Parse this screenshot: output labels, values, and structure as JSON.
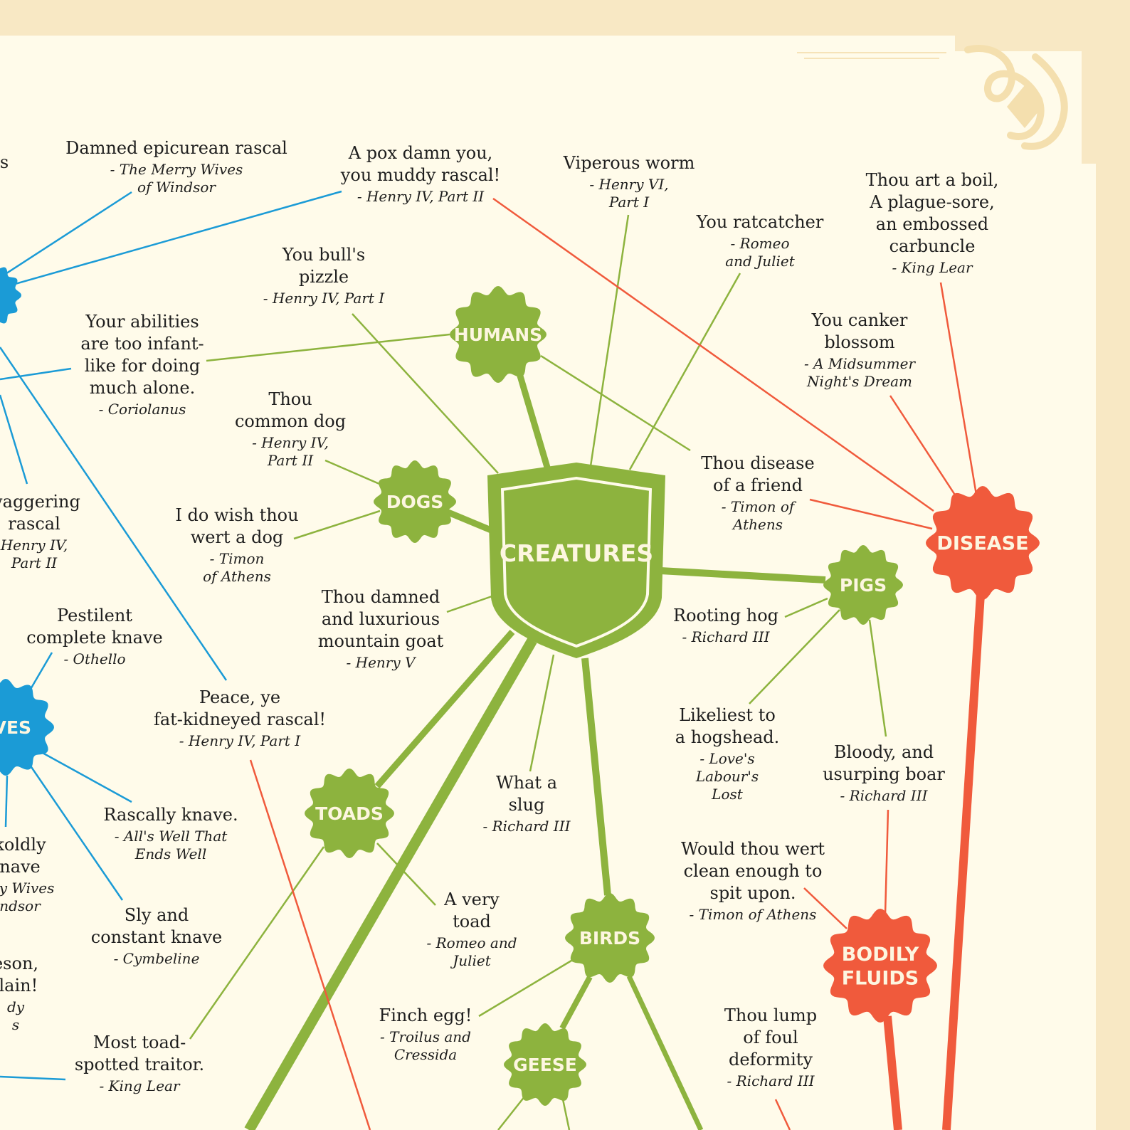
{
  "colors": {
    "background_outer": "#f8e8c4",
    "paper": "#fffbea",
    "green": "#8db33e",
    "red": "#f05a3c",
    "blue": "#1b9bd6",
    "text": "#1e1e1e",
    "badge_text": "#fdf6e0"
  },
  "center": {
    "label": "CREATURES"
  },
  "badges": [
    {
      "id": "humans",
      "label": "HUMANS"
    },
    {
      "id": "dogs",
      "label": "DOGS"
    },
    {
      "id": "pigs",
      "label": "PIGS"
    },
    {
      "id": "toads",
      "label": "TOADS"
    },
    {
      "id": "birds",
      "label": "BIRDS"
    },
    {
      "id": "geese",
      "label": "GEESE"
    },
    {
      "id": "disease",
      "label": "DISEASE"
    },
    {
      "id": "bodily_fluids",
      "label": "BODILY\nFLUIDS"
    },
    {
      "id": "blue_top",
      "label": ""
    },
    {
      "id": "knaves",
      "label": "AVES"
    }
  ],
  "quotes": [
    {
      "id": "epicurean",
      "lines": [
        "Damned epicurean rascal"
      ],
      "source": [
        "- The Merry Wives",
        "of Windsor"
      ]
    },
    {
      "id": "pox",
      "lines": [
        "A pox damn you,",
        "you muddy rascal!"
      ],
      "source": [
        "- Henry IV, Part II"
      ]
    },
    {
      "id": "viperous",
      "lines": [
        "Viperous worm"
      ],
      "source": [
        "- Henry VI,",
        "Part I"
      ]
    },
    {
      "id": "ratcatcher",
      "lines": [
        "You ratcatcher"
      ],
      "source": [
        "- Romeo",
        "and Juliet"
      ]
    },
    {
      "id": "boil",
      "lines": [
        "Thou art a boil,",
        "A plague-sore,",
        "an embossed",
        "carbuncle"
      ],
      "source": [
        "- King Lear"
      ]
    },
    {
      "id": "pizzle",
      "lines": [
        "You bull's",
        "pizzle"
      ],
      "source": [
        "- Henry IV, Part I"
      ]
    },
    {
      "id": "abilities",
      "lines": [
        "Your abilities",
        "are too infant-",
        "like for doing",
        "much alone."
      ],
      "source": [
        "- Coriolanus"
      ]
    },
    {
      "id": "canker",
      "lines": [
        "You canker",
        "blossom"
      ],
      "source": [
        "- A Midsummer",
        "Night's Dream"
      ]
    },
    {
      "id": "common_dog",
      "lines": [
        "Thou",
        "common dog"
      ],
      "source": [
        "- Henry IV,",
        "Part II"
      ]
    },
    {
      "id": "disease_friend",
      "lines": [
        "Thou disease",
        "of a friend"
      ],
      "source": [
        "- Timon of",
        "Athens"
      ]
    },
    {
      "id": "swaggering",
      "lines": [
        "waggering",
        "rascal"
      ],
      "source": [
        "Henry IV,",
        "Part II"
      ]
    },
    {
      "id": "wish_dog",
      "lines": [
        "I do wish thou",
        "wert a dog"
      ],
      "source": [
        "- Timon",
        "of Athens"
      ]
    },
    {
      "id": "goat",
      "lines": [
        "Thou damned",
        "and luxurious",
        "mountain goat"
      ],
      "source": [
        "- Henry V"
      ]
    },
    {
      "id": "hog",
      "lines": [
        "Rooting hog"
      ],
      "source": [
        "- Richard III"
      ]
    },
    {
      "id": "pestilent",
      "lines": [
        "Pestilent",
        "complete knave"
      ],
      "source": [
        "- Othello"
      ]
    },
    {
      "id": "peace",
      "lines": [
        "Peace, ye",
        "fat-kidneyed rascal!"
      ],
      "source": [
        "- Henry IV, Part I"
      ]
    },
    {
      "id": "hogshead",
      "lines": [
        "Likeliest to",
        "a hogshead."
      ],
      "source": [
        "- Love's",
        "Labour's",
        "Lost"
      ]
    },
    {
      "id": "slug",
      "lines": [
        "What a",
        "slug"
      ],
      "source": [
        "- Richard III"
      ]
    },
    {
      "id": "boar",
      "lines": [
        "Bloody, and",
        "usurping boar"
      ],
      "source": [
        "- Richard III"
      ]
    },
    {
      "id": "rascally",
      "lines": [
        "Rascally knave."
      ],
      "source": [
        "- All's Well That",
        "Ends Well"
      ]
    },
    {
      "id": "cuckoldly",
      "lines": [
        "koldly",
        "nave"
      ],
      "source": [
        "rry Wives",
        "ndsor"
      ]
    },
    {
      "id": "spit",
      "lines": [
        "Would thou wert",
        "clean enough to",
        "spit upon."
      ],
      "source": [
        "- Timon of Athens"
      ]
    },
    {
      "id": "very_toad",
      "lines": [
        "A very",
        "toad"
      ],
      "source": [
        "- Romeo and",
        "Juliet"
      ]
    },
    {
      "id": "sly",
      "lines": [
        "Sly and",
        "constant knave"
      ],
      "source": [
        "- Cymbeline"
      ]
    },
    {
      "id": "treason",
      "lines": [
        "eson,",
        "llain!"
      ],
      "source": [
        "dy",
        "s"
      ]
    },
    {
      "id": "finch",
      "lines": [
        "Finch egg!"
      ],
      "source": [
        "- Troilus and",
        "Cressida"
      ]
    },
    {
      "id": "lump",
      "lines": [
        "Thou lump",
        "of foul",
        "deformity"
      ],
      "source": [
        "- Richard III"
      ]
    },
    {
      "id": "toad_spotted",
      "lines": [
        "Most toad-",
        "spotted traitor."
      ],
      "source": [
        "- King Lear"
      ]
    },
    {
      "id": "partial_s",
      "lines": [
        "s"
      ],
      "source": []
    }
  ]
}
